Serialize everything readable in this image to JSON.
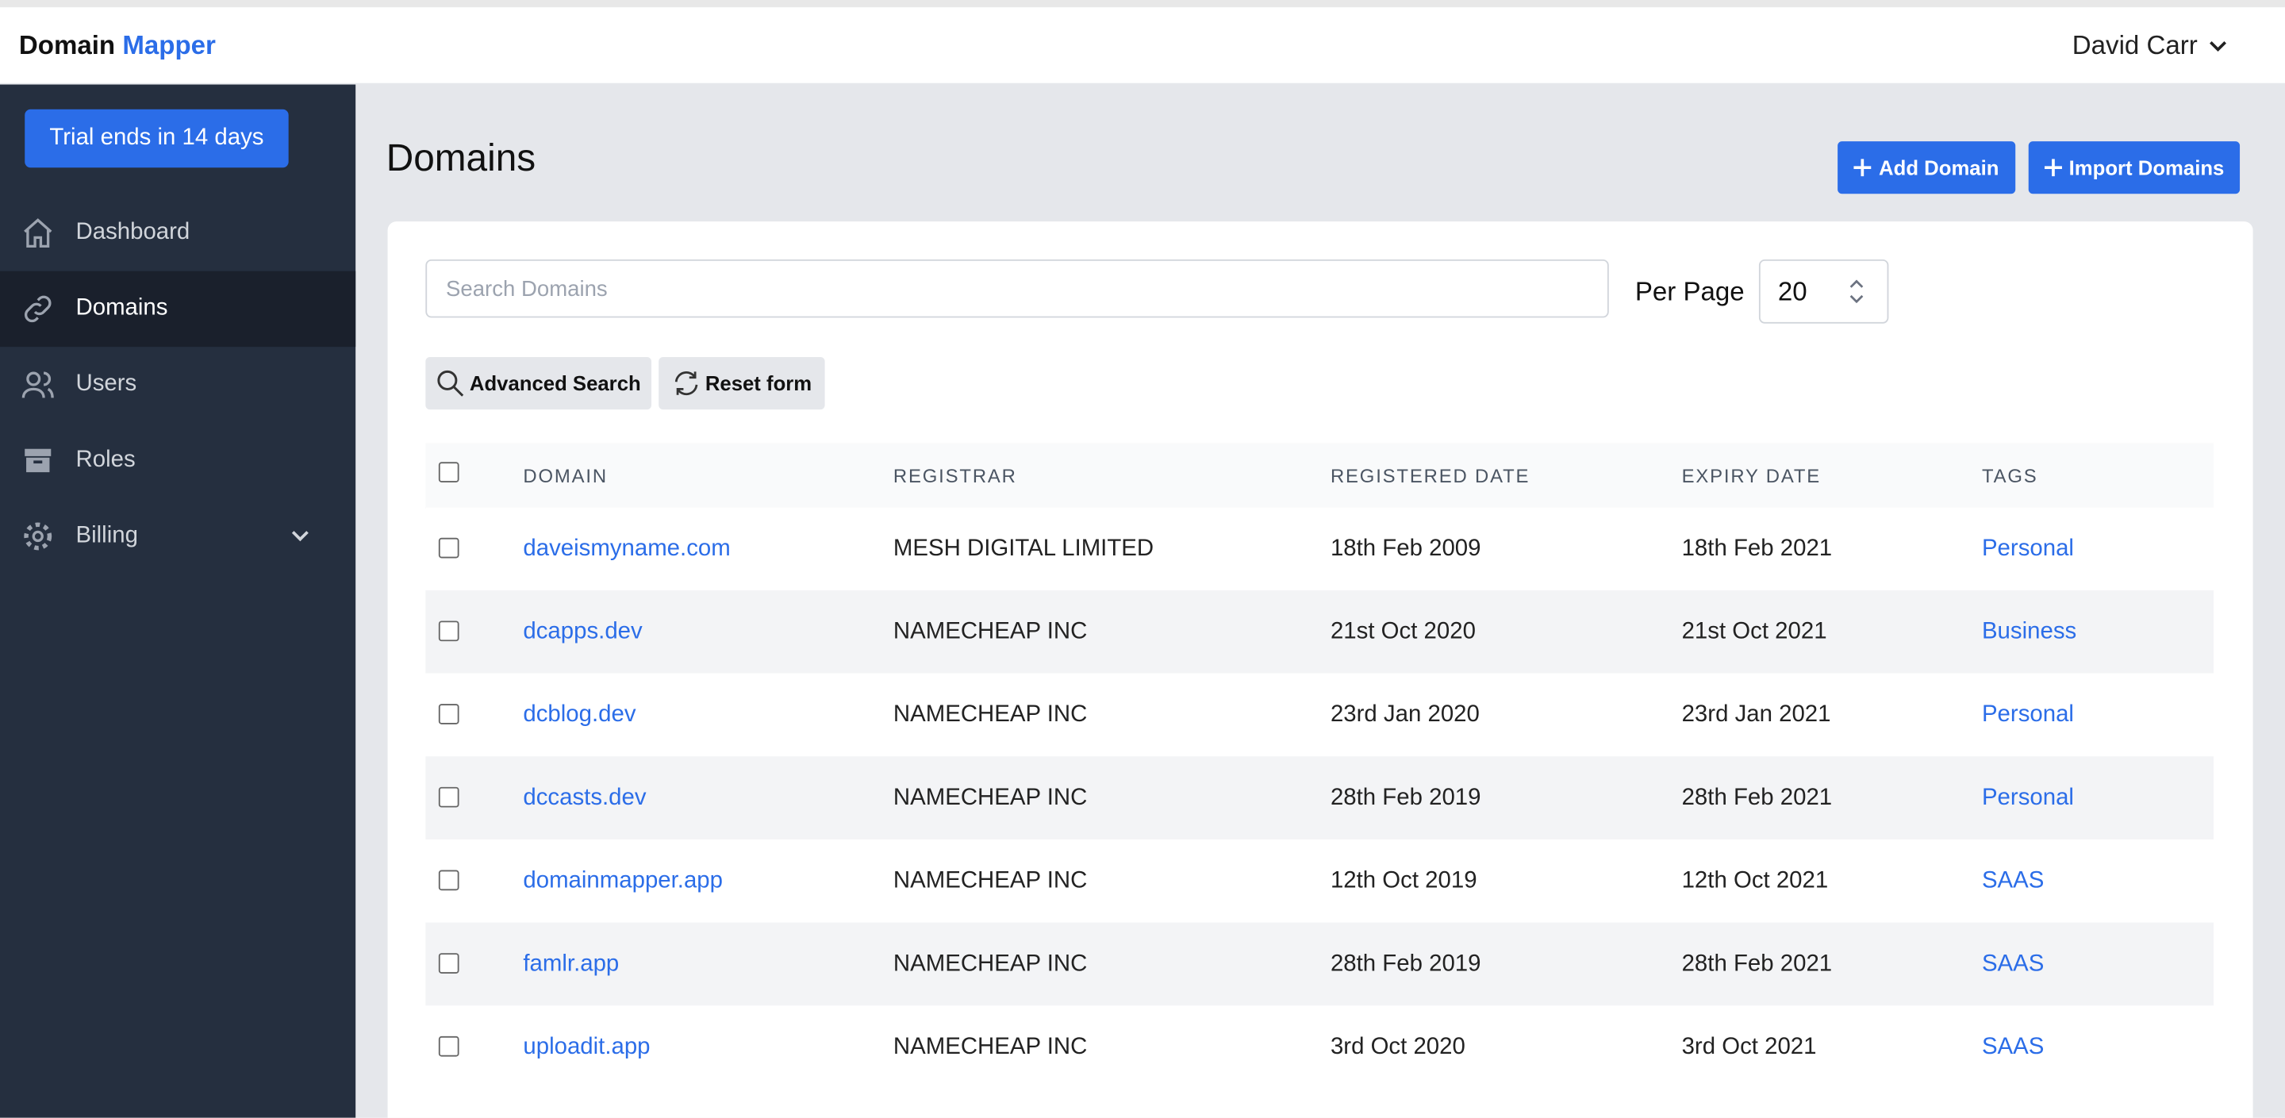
{
  "header": {
    "brand": {
      "first": "Domain",
      "second": "Mapper"
    },
    "user": "David Carr"
  },
  "sidebar": {
    "trial": "Trial ends in 14 days",
    "nav": [
      "Dashboard",
      "Domains",
      "Users",
      "Roles",
      "Billing"
    ]
  },
  "main": {
    "title": "Domains",
    "add_button": "Add Domain",
    "import_button": "Import Domains",
    "search_placeholder": "Search Domains",
    "per_page_label": "Per Page",
    "per_page_value": "20",
    "advanced_search": "Advanced Search",
    "reset_form": "Reset form"
  },
  "table": {
    "columns": [
      "DOMAIN",
      "REGISTRAR",
      "REGISTERED DATE",
      "EXPIRY DATE",
      "TAGS"
    ],
    "rows": [
      [
        "daveismyname.com",
        "MESH DIGITAL LIMITED",
        "18th Feb 2009",
        "18th Feb 2021",
        "Personal"
      ],
      [
        "dcapps.dev",
        "NAMECHEAP INC",
        "21st Oct 2020",
        "21st Oct 2021",
        "Business"
      ],
      [
        "dcblog.dev",
        "NAMECHEAP INC",
        "23rd Jan 2020",
        "23rd Jan 2021",
        "Personal"
      ],
      [
        "dccasts.dev",
        "NAMECHEAP INC",
        "28th Feb 2019",
        "28th Feb 2021",
        "Personal"
      ],
      [
        "domainmapper.app",
        "NAMECHEAP INC",
        "12th Oct 2019",
        "12th Oct 2021",
        "SAAS"
      ],
      [
        "famlr.app",
        "NAMECHEAP INC",
        "28th Feb 2019",
        "28th Feb 2021",
        "SAAS"
      ],
      [
        "uploadit.app",
        "NAMECHEAP INC",
        "3rd Oct 2020",
        "3rd Oct 2021",
        "SAAS"
      ]
    ]
  }
}
